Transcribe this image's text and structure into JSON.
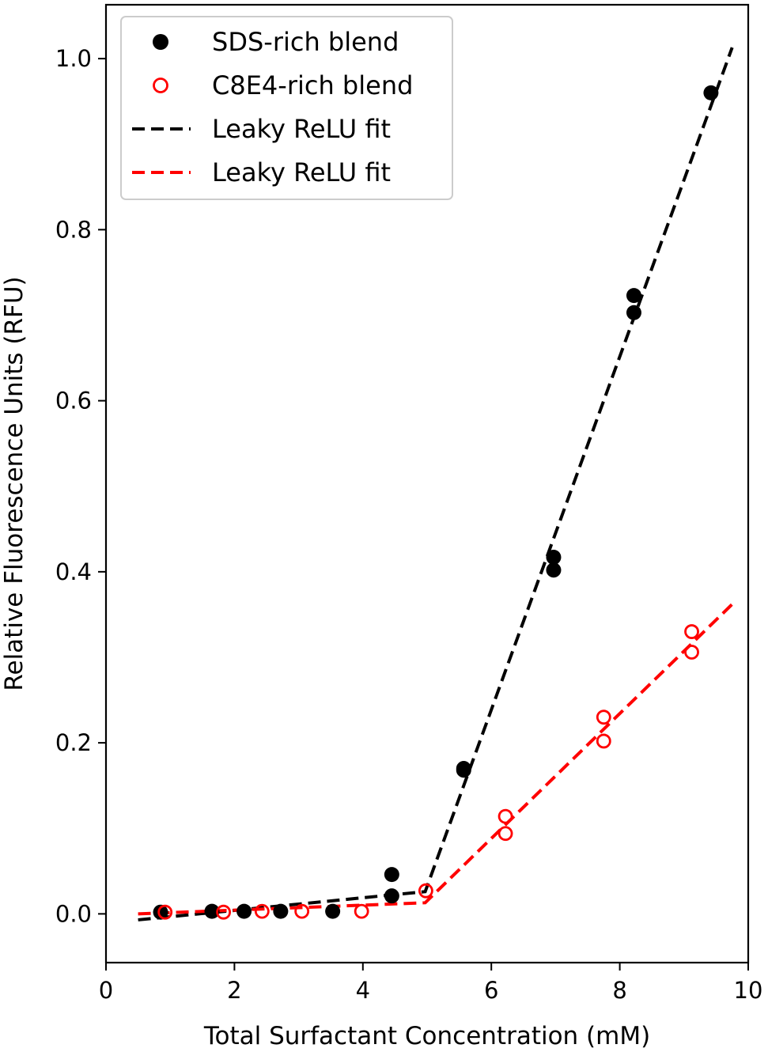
{
  "chart_data": {
    "type": "scatter",
    "title": "",
    "xlabel": "Total Surfactant Concentration (mM)",
    "ylabel": "Relative Fluorescence Units (RFU)",
    "xlim": [
      0,
      10
    ],
    "ylim": [
      -0.057,
      1.063
    ],
    "xticks": [
      0,
      2,
      4,
      6,
      8,
      10
    ],
    "xtick_labels": [
      "0",
      "2",
      "4",
      "6",
      "8",
      "10"
    ],
    "yticks": [
      0.0,
      0.2,
      0.4,
      0.6,
      0.8,
      1.0
    ],
    "ytick_labels": [
      "0.0",
      "0.2",
      "0.4",
      "0.6",
      "0.8",
      "1.0"
    ],
    "grid": false,
    "legend_position": "top-left",
    "series": [
      {
        "name": "SDS-rich blend",
        "kind": "scatter",
        "marker": "filled-circle",
        "color": "#000000",
        "x": [
          0.85,
          1.65,
          2.15,
          2.72,
          3.53,
          4.45,
          4.45,
          5.57,
          5.57,
          6.97,
          6.97,
          8.22,
          8.22,
          9.42
        ],
        "y": [
          0.002,
          0.003,
          0.003,
          0.003,
          0.003,
          0.021,
          0.046,
          0.168,
          0.17,
          0.402,
          0.417,
          0.703,
          0.723,
          0.96
        ]
      },
      {
        "name": "C8E4-rich blend",
        "kind": "scatter",
        "marker": "open-circle",
        "color": "#ff0000",
        "x": [
          0.92,
          1.83,
          2.43,
          3.05,
          3.98,
          4.98,
          6.22,
          6.22,
          7.75,
          7.75,
          9.12,
          9.12
        ],
        "y": [
          0.002,
          0.002,
          0.003,
          0.003,
          0.003,
          0.027,
          0.094,
          0.114,
          0.202,
          0.23,
          0.306,
          0.33
        ]
      },
      {
        "name": "Leaky ReLU fit",
        "kind": "line",
        "style": "dashed",
        "color": "#000000",
        "x": [
          0.5,
          4.97,
          9.75
        ],
        "y": [
          -0.007,
          0.026,
          1.013
        ]
      },
      {
        "name": "Leaky ReLU fit",
        "kind": "line",
        "style": "dashed",
        "color": "#ff0000",
        "x": [
          0.5,
          4.97,
          9.75
        ],
        "y": [
          0.0,
          0.013,
          0.362
        ]
      }
    ]
  }
}
